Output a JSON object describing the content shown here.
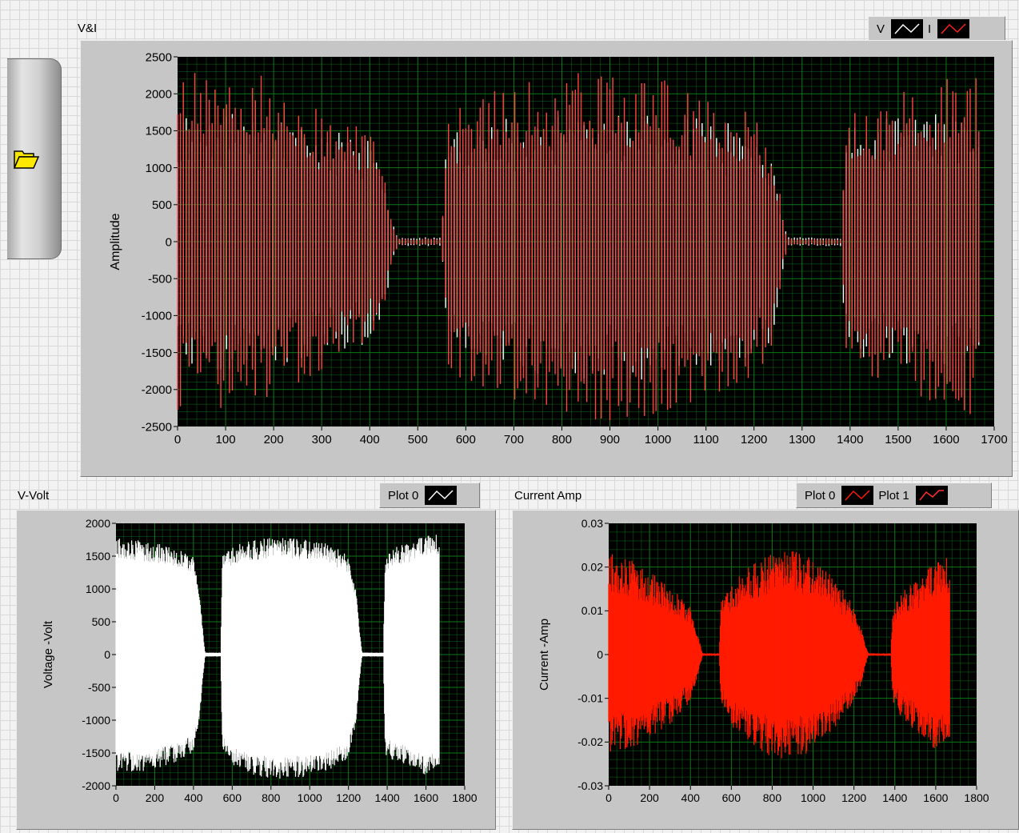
{
  "load_button": {
    "icon": "folder-open-icon"
  },
  "chart_data": [
    {
      "id": "vi",
      "type": "line",
      "caption": "V&I",
      "ylabel": "Amplitude",
      "xlabel": "",
      "xlim": [
        0,
        1700
      ],
      "ylim": [
        -2500,
        2500
      ],
      "x_ticks": [
        0,
        100,
        200,
        300,
        400,
        500,
        600,
        700,
        800,
        900,
        1000,
        1100,
        1200,
        1300,
        1400,
        1500,
        1600,
        1700
      ],
      "y_ticks": [
        2500,
        2000,
        1500,
        1000,
        500,
        0,
        -500,
        -1000,
        -1500,
        -2000,
        -2500
      ],
      "x_tick_labels": [
        "0",
        "100",
        "200",
        "300",
        "400",
        "500",
        "600",
        "700",
        "800",
        "900",
        "1000",
        "1100",
        "1200",
        "1300",
        "1400",
        "1500",
        "1600",
        "1700"
      ],
      "y_tick_labels": [
        "2500",
        "2000",
        "1500",
        "1000",
        "500",
        "0",
        "-500",
        "-1000",
        "-1500",
        "-2000",
        "-2500"
      ],
      "grid": true,
      "legend_position": "top-right",
      "series": [
        {
          "name": "V",
          "color": "#ffffff",
          "envelope_x": [
            0,
            50,
            100,
            150,
            200,
            250,
            300,
            350,
            400,
            430,
            445,
            460,
            550,
            560,
            600,
            700,
            800,
            900,
            1000,
            1100,
            1200,
            1240,
            1260,
            1270,
            1380,
            1390,
            1450,
            1500,
            1550,
            1600,
            1670
          ],
          "envelope_hi": [
            1700,
            1780,
            1750,
            1700,
            1650,
            1600,
            1550,
            1500,
            1400,
            1000,
            300,
            60,
            60,
            1400,
            1650,
            1700,
            1700,
            1720,
            1720,
            1700,
            1500,
            1200,
            400,
            60,
            60,
            1550,
            1650,
            1720,
            1780,
            1800,
            1800
          ],
          "envelope_lo": [
            -1800,
            -1850,
            -1800,
            -1750,
            -1700,
            -1600,
            -1550,
            -1500,
            -1400,
            -1000,
            -300,
            -60,
            -60,
            -1400,
            -1650,
            -1800,
            -1850,
            -1900,
            -1850,
            -1800,
            -1600,
            -1300,
            -400,
            -60,
            -60,
            -1500,
            -1650,
            -1700,
            -1750,
            -1800,
            -1850
          ]
        },
        {
          "name": "I",
          "color": "#ff4444",
          "envelope_x": [
            0,
            50,
            100,
            150,
            200,
            250,
            300,
            350,
            400,
            430,
            445,
            460,
            550,
            560,
            600,
            700,
            800,
            900,
            1000,
            1100,
            1200,
            1240,
            1260,
            1270,
            1380,
            1390,
            1450,
            1500,
            1550,
            1600,
            1670
          ],
          "envelope_hi": [
            2450,
            2450,
            2350,
            2300,
            2200,
            1950,
            1750,
            1650,
            1500,
            1000,
            300,
            40,
            40,
            1650,
            1900,
            2150,
            2350,
            2300,
            2250,
            2050,
            1750,
            1300,
            400,
            40,
            40,
            1700,
            1900,
            2000,
            2150,
            2300,
            2250
          ],
          "envelope_lo": [
            -2350,
            -2350,
            -2300,
            -2250,
            -2100,
            -1950,
            -1800,
            -1600,
            -1400,
            -1000,
            -300,
            -40,
            -40,
            -1650,
            -1950,
            -2200,
            -2400,
            -2450,
            -2350,
            -2200,
            -1900,
            -1400,
            -400,
            -40,
            -40,
            -1700,
            -1900,
            -2050,
            -2200,
            -2350,
            -2400
          ]
        }
      ]
    },
    {
      "id": "volt",
      "type": "line",
      "caption": "V-Volt",
      "ylabel": "Voltage -Volt",
      "xlabel": "",
      "xlim": [
        0,
        1800
      ],
      "ylim": [
        -2000,
        2000
      ],
      "x_ticks": [
        0,
        200,
        400,
        600,
        800,
        1000,
        1200,
        1400,
        1600,
        1800
      ],
      "y_ticks": [
        2000,
        1500,
        1000,
        500,
        0,
        -500,
        -1000,
        -1500,
        -2000
      ],
      "x_tick_labels": [
        "0",
        "200",
        "400",
        "600",
        "800",
        "1000",
        "1200",
        "1400",
        "1600",
        "1800"
      ],
      "y_tick_labels": [
        "2000",
        "1500",
        "1000",
        "500",
        "0",
        "-500",
        "-1000",
        "-1500",
        "-2000"
      ],
      "grid": true,
      "legend_position": "top-right",
      "series": [
        {
          "name": "Plot 0",
          "color": "#ffffff",
          "envelope_x": [
            0,
            100,
            200,
            300,
            400,
            430,
            450,
            460,
            540,
            550,
            600,
            700,
            800,
            900,
            1000,
            1100,
            1200,
            1240,
            1260,
            1270,
            1380,
            1390,
            1450,
            1550,
            1600,
            1670
          ],
          "envelope_hi": [
            1800,
            1750,
            1700,
            1650,
            1500,
            1000,
            300,
            30,
            30,
            1500,
            1650,
            1750,
            1780,
            1780,
            1750,
            1700,
            1500,
            1000,
            300,
            30,
            30,
            1500,
            1650,
            1750,
            1850,
            1850
          ],
          "envelope_lo": [
            -1800,
            -1800,
            -1750,
            -1650,
            -1500,
            -1000,
            -300,
            -30,
            -30,
            -1500,
            -1700,
            -1850,
            -1900,
            -1900,
            -1850,
            -1800,
            -1600,
            -1000,
            -300,
            -30,
            -30,
            -1550,
            -1650,
            -1750,
            -1850,
            -1850
          ]
        }
      ]
    },
    {
      "id": "amp",
      "type": "line",
      "caption": "Current Amp",
      "ylabel": "Current -Amp",
      "xlabel": "",
      "xlim": [
        0,
        1800
      ],
      "ylim": [
        -0.03,
        0.03
      ],
      "x_ticks": [
        0,
        200,
        400,
        600,
        800,
        1000,
        1200,
        1400,
        1600,
        1800
      ],
      "y_ticks": [
        0.03,
        0.02,
        0.01,
        0,
        -0.01,
        -0.02,
        -0.03
      ],
      "x_tick_labels": [
        "0",
        "200",
        "400",
        "600",
        "800",
        "1000",
        "1200",
        "1400",
        "1600",
        "1800"
      ],
      "y_tick_labels": [
        "0.03",
        "0.02",
        "0.01",
        "0",
        "-0.01",
        "-0.02",
        "-0.03"
      ],
      "grid": true,
      "legend_position": "top-right",
      "legend": [
        {
          "name": "Plot 0",
          "color": "#ff1a00"
        },
        {
          "name": "Plot 1",
          "color": "#ff3030"
        }
      ],
      "series": [
        {
          "name": "Plot 0",
          "color": "#ff1a00",
          "envelope_x": [
            0,
            100,
            200,
            300,
            400,
            430,
            450,
            460,
            540,
            550,
            600,
            700,
            800,
            900,
            1000,
            1100,
            1200,
            1240,
            1260,
            1270,
            1380,
            1390,
            1450,
            1550,
            1600,
            1670
          ],
          "envelope_hi": [
            0.024,
            0.022,
            0.019,
            0.016,
            0.011,
            0.006,
            0.002,
            0.0003,
            0.0003,
            0.012,
            0.016,
            0.021,
            0.023,
            0.024,
            0.022,
            0.018,
            0.011,
            0.006,
            0.002,
            0.0003,
            0.0003,
            0.011,
            0.015,
            0.019,
            0.022,
            0.023
          ],
          "envelope_lo": [
            -0.023,
            -0.022,
            -0.019,
            -0.016,
            -0.011,
            -0.006,
            -0.002,
            -0.0003,
            -0.0003,
            -0.012,
            -0.017,
            -0.021,
            -0.024,
            -0.024,
            -0.022,
            -0.018,
            -0.011,
            -0.006,
            -0.002,
            -0.0003,
            -0.0003,
            -0.011,
            -0.016,
            -0.02,
            -0.022,
            -0.024
          ]
        }
      ]
    }
  ]
}
